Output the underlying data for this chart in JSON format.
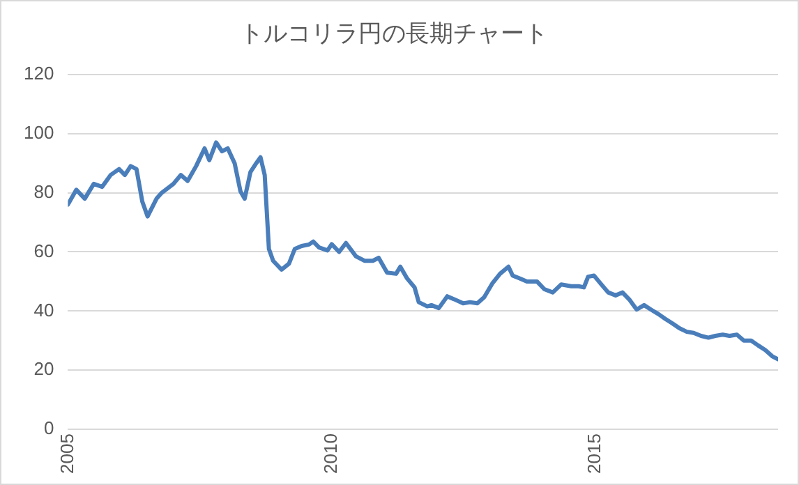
{
  "chart_data": {
    "type": "line",
    "title": "トルコリラ円の長期チャート",
    "grid": "y",
    "legend": false,
    "marker": "none",
    "line_style": "solid",
    "xlim": [
      2005,
      2018.46
    ],
    "xticks": [
      2005,
      2010,
      2015
    ],
    "ylim": [
      0,
      120
    ],
    "yticks": [
      0,
      20,
      40,
      60,
      80,
      100,
      120
    ],
    "series": [
      {
        "color": "#4a7ebb",
        "x": [
          2005.0,
          2005.16,
          2005.32,
          2005.49,
          2005.65,
          2005.81,
          2005.97,
          2006.08,
          2006.19,
          2006.3,
          2006.41,
          2006.51,
          2006.68,
          2006.78,
          2007.0,
          2007.14,
          2007.27,
          2007.43,
          2007.59,
          2007.68,
          2007.81,
          2007.92,
          2008.03,
          2008.16,
          2008.27,
          2008.35,
          2008.46,
          2008.57,
          2008.65,
          2008.73,
          2008.81,
          2008.89,
          2009.05,
          2009.19,
          2009.3,
          2009.43,
          2009.57,
          2009.65,
          2009.76,
          2009.92,
          2010.0,
          2010.14,
          2010.27,
          2010.46,
          2010.62,
          2010.78,
          2010.89,
          2011.05,
          2011.22,
          2011.3,
          2011.43,
          2011.57,
          2011.65,
          2011.81,
          2011.89,
          2012.03,
          2012.19,
          2012.32,
          2012.49,
          2012.62,
          2012.76,
          2012.89,
          2013.05,
          2013.19,
          2013.35,
          2013.43,
          2013.57,
          2013.7,
          2013.89,
          2014.03,
          2014.19,
          2014.35,
          2014.54,
          2014.68,
          2014.78,
          2014.86,
          2014.97,
          2015.11,
          2015.24,
          2015.38,
          2015.51,
          2015.65,
          2015.78,
          2015.92,
          2016.05,
          2016.19,
          2016.32,
          2016.46,
          2016.59,
          2016.73,
          2016.86,
          2017.0,
          2017.14,
          2017.27,
          2017.41,
          2017.54,
          2017.68,
          2017.81,
          2017.95,
          2018.08,
          2018.22,
          2018.35,
          2018.46
        ],
        "values": [
          76,
          81,
          78,
          83,
          82,
          86,
          88,
          86,
          89,
          88,
          77,
          72,
          78,
          80,
          83,
          86,
          84,
          89,
          95,
          91,
          97,
          94,
          95,
          90,
          80.5,
          78,
          87,
          90,
          92,
          86,
          61,
          57,
          54,
          56,
          61,
          62,
          62.5,
          63.5,
          61.5,
          60.5,
          62.6,
          60,
          63,
          58.5,
          57,
          57,
          58,
          53,
          52.6,
          55,
          51,
          48,
          43,
          41.6,
          42,
          41,
          45,
          44,
          42.6,
          43,
          42.6,
          44.7,
          49.5,
          52.6,
          55,
          52,
          51,
          50,
          50,
          47.4,
          46.3,
          49,
          48.4,
          48.4,
          48,
          51.6,
          52,
          49,
          46.3,
          45.3,
          46.3,
          43.7,
          40.5,
          42,
          40.5,
          39,
          37.4,
          35.8,
          34.2,
          33,
          32.6,
          31.6,
          31,
          31.6,
          32,
          31.6,
          32,
          30,
          30,
          28.4,
          26.8,
          24.7,
          23.7
        ]
      }
    ]
  }
}
